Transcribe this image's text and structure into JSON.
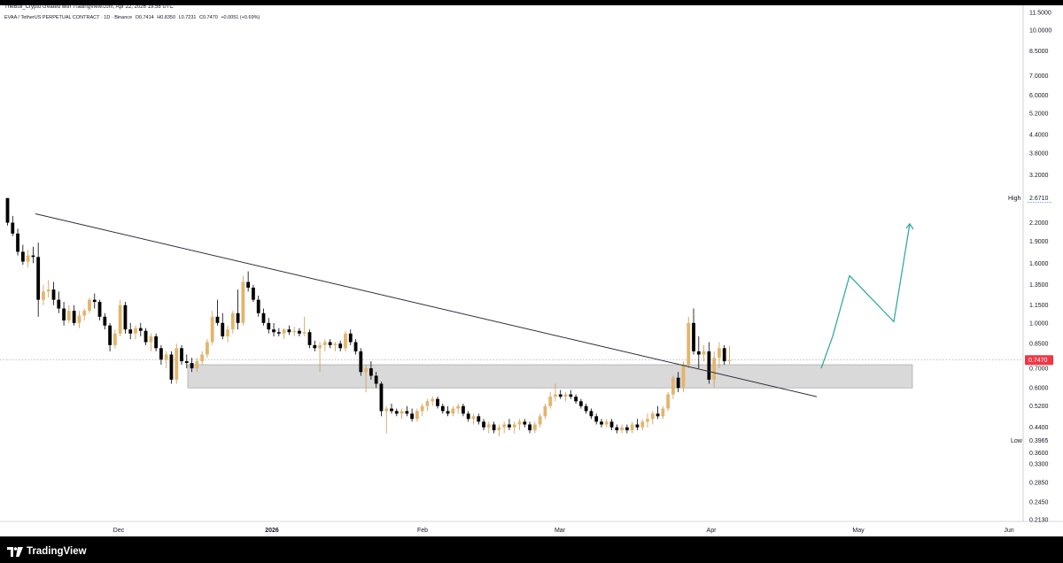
{
  "header": {
    "author_line": "TheBull_Crypto created with TradingView.com, Apr 22, 2026 19:58 UTC",
    "symbol": "EVAA / TetherUS PERPETUAL CONTRACT · 1D · Binance",
    "open": "O0.7414",
    "high": "H0.8350",
    "low": "L0.7231",
    "close": "C0.7470",
    "change": "+0.0051 (+0.69%)"
  },
  "footer": {
    "brand": "TradingView"
  },
  "colors": {
    "bull": "#e3b56b",
    "bear": "#000000",
    "zone": "#d9d9d9",
    "trendline": "#2a2e39",
    "projection": "#26a69a",
    "price_marker": "#f23645"
  },
  "chart_data": {
    "type": "candlestick",
    "title": "",
    "scale": "log",
    "y_ticks": [
      "11.5000",
      "10.0000",
      "8.5000",
      "7.0000",
      "6.0000",
      "5.2000",
      "4.4000",
      "3.8000",
      "3.2000",
      "2.6710",
      "2.2000",
      "1.9000",
      "1.6000",
      "1.3500",
      "1.1500",
      "1.0000",
      "0.8500",
      "0.7470",
      "0.7000",
      "0.6000",
      "0.5200",
      "0.4400",
      "0.3965",
      "0.3600",
      "0.3300",
      "0.2850",
      "0.2450",
      "0.2130"
    ],
    "x_ticks": [
      "Dec",
      "2026",
      "Feb",
      "Mar",
      "Apr",
      "May",
      "Jun"
    ],
    "markers": {
      "high": {
        "label": "High",
        "value": "2.6710"
      },
      "low": {
        "label": "Low",
        "value": "0.3965"
      },
      "last": {
        "value": "0.7470"
      }
    },
    "support_zone": {
      "low": 0.6,
      "high": 0.72
    },
    "trendline": [
      {
        "date": "2025-11-08",
        "price": 2.36
      },
      {
        "date": "2026-04-22",
        "price": 0.56
      }
    ],
    "projection_path": [
      {
        "date": "2026-04-23",
        "price": 0.7
      },
      {
        "date": "2026-04-28",
        "price": 0.9
      },
      {
        "date": "2026-05-02",
        "price": 1.45
      },
      {
        "date": "2026-05-13",
        "price": 1.01
      },
      {
        "date": "2026-05-17",
        "price": 2.18
      }
    ],
    "candles": [
      {
        "o": 2.67,
        "h": 2.67,
        "l": 2.15,
        "c": 2.2
      },
      {
        "o": 2.2,
        "h": 2.32,
        "l": 1.98,
        "c": 2.02
      },
      {
        "o": 2.02,
        "h": 2.1,
        "l": 1.7,
        "c": 1.75
      },
      {
        "o": 1.75,
        "h": 1.85,
        "l": 1.58,
        "c": 1.62
      },
      {
        "o": 1.62,
        "h": 1.78,
        "l": 1.55,
        "c": 1.7
      },
      {
        "o": 1.7,
        "h": 1.82,
        "l": 1.6,
        "c": 1.68
      },
      {
        "o": 1.68,
        "h": 1.88,
        "l": 1.05,
        "c": 1.2
      },
      {
        "o": 1.2,
        "h": 1.35,
        "l": 1.15,
        "c": 1.28
      },
      {
        "o": 1.28,
        "h": 1.4,
        "l": 1.22,
        "c": 1.3
      },
      {
        "o": 1.3,
        "h": 1.38,
        "l": 1.15,
        "c": 1.2
      },
      {
        "o": 1.2,
        "h": 1.28,
        "l": 1.08,
        "c": 1.12
      },
      {
        "o": 1.12,
        "h": 1.18,
        "l": 0.98,
        "c": 1.02
      },
      {
        "o": 1.02,
        "h": 1.15,
        "l": 1.0,
        "c": 1.1
      },
      {
        "o": 1.1,
        "h": 1.15,
        "l": 0.98,
        "c": 1.0
      },
      {
        "o": 1.0,
        "h": 1.1,
        "l": 0.96,
        "c": 1.06
      },
      {
        "o": 1.06,
        "h": 1.12,
        "l": 1.02,
        "c": 1.1
      },
      {
        "o": 1.1,
        "h": 1.22,
        "l": 1.08,
        "c": 1.2
      },
      {
        "o": 1.2,
        "h": 1.26,
        "l": 1.12,
        "c": 1.18
      },
      {
        "o": 1.18,
        "h": 1.2,
        "l": 1.02,
        "c": 1.05
      },
      {
        "o": 1.05,
        "h": 1.08,
        "l": 0.95,
        "c": 0.98
      },
      {
        "o": 0.98,
        "h": 1.0,
        "l": 0.8,
        "c": 0.84
      },
      {
        "o": 0.84,
        "h": 0.95,
        "l": 0.82,
        "c": 0.92
      },
      {
        "o": 0.92,
        "h": 1.2,
        "l": 0.9,
        "c": 1.15
      },
      {
        "o": 1.15,
        "h": 1.18,
        "l": 0.92,
        "c": 0.95
      },
      {
        "o": 0.95,
        "h": 1.0,
        "l": 0.88,
        "c": 0.92
      },
      {
        "o": 0.92,
        "h": 0.98,
        "l": 0.88,
        "c": 0.96
      },
      {
        "o": 0.96,
        "h": 1.0,
        "l": 0.9,
        "c": 0.94
      },
      {
        "o": 0.94,
        "h": 0.96,
        "l": 0.84,
        "c": 0.86
      },
      {
        "o": 0.86,
        "h": 0.92,
        "l": 0.8,
        "c": 0.9
      },
      {
        "o": 0.9,
        "h": 0.92,
        "l": 0.8,
        "c": 0.82
      },
      {
        "o": 0.82,
        "h": 0.84,
        "l": 0.72,
        "c": 0.75
      },
      {
        "o": 0.75,
        "h": 0.8,
        "l": 0.7,
        "c": 0.78
      },
      {
        "o": 0.78,
        "h": 0.8,
        "l": 0.62,
        "c": 0.64
      },
      {
        "o": 0.64,
        "h": 0.85,
        "l": 0.62,
        "c": 0.82
      },
      {
        "o": 0.82,
        "h": 0.84,
        "l": 0.72,
        "c": 0.74
      },
      {
        "o": 0.74,
        "h": 0.78,
        "l": 0.7,
        "c": 0.73
      },
      {
        "o": 0.73,
        "h": 0.76,
        "l": 0.68,
        "c": 0.7
      },
      {
        "o": 0.7,
        "h": 0.76,
        "l": 0.68,
        "c": 0.74
      },
      {
        "o": 0.74,
        "h": 0.8,
        "l": 0.72,
        "c": 0.78
      },
      {
        "o": 0.78,
        "h": 0.88,
        "l": 0.76,
        "c": 0.86
      },
      {
        "o": 0.86,
        "h": 1.1,
        "l": 0.84,
        "c": 1.05
      },
      {
        "o": 1.05,
        "h": 1.2,
        "l": 0.98,
        "c": 1.0
      },
      {
        "o": 1.0,
        "h": 1.08,
        "l": 0.88,
        "c": 0.9
      },
      {
        "o": 0.9,
        "h": 0.98,
        "l": 0.86,
        "c": 0.95
      },
      {
        "o": 0.95,
        "h": 1.1,
        "l": 0.92,
        "c": 1.08
      },
      {
        "o": 1.08,
        "h": 1.3,
        "l": 0.95,
        "c": 1.0
      },
      {
        "o": 1.0,
        "h": 1.45,
        "l": 0.98,
        "c": 1.38
      },
      {
        "o": 1.38,
        "h": 1.5,
        "l": 1.28,
        "c": 1.32
      },
      {
        "o": 1.32,
        "h": 1.35,
        "l": 1.18,
        "c": 1.2
      },
      {
        "o": 1.2,
        "h": 1.24,
        "l": 1.05,
        "c": 1.08
      },
      {
        "o": 1.08,
        "h": 1.12,
        "l": 0.98,
        "c": 1.0
      },
      {
        "o": 1.0,
        "h": 1.04,
        "l": 0.92,
        "c": 0.95
      },
      {
        "o": 0.95,
        "h": 1.0,
        "l": 0.9,
        "c": 0.93
      },
      {
        "o": 0.93,
        "h": 0.96,
        "l": 0.9,
        "c": 0.92
      },
      {
        "o": 0.92,
        "h": 0.96,
        "l": 0.88,
        "c": 0.95
      },
      {
        "o": 0.95,
        "h": 0.98,
        "l": 0.91,
        "c": 0.93
      },
      {
        "o": 0.93,
        "h": 0.97,
        "l": 0.9,
        "c": 0.94
      },
      {
        "o": 0.94,
        "h": 0.96,
        "l": 0.9,
        "c": 0.92
      },
      {
        "o": 0.92,
        "h": 1.05,
        "l": 0.9,
        "c": 0.93
      },
      {
        "o": 0.93,
        "h": 0.95,
        "l": 0.82,
        "c": 0.84
      },
      {
        "o": 0.84,
        "h": 0.87,
        "l": 0.8,
        "c": 0.82
      },
      {
        "o": 0.82,
        "h": 0.86,
        "l": 0.68,
        "c": 0.84
      },
      {
        "o": 0.84,
        "h": 0.88,
        "l": 0.8,
        "c": 0.86
      },
      {
        "o": 0.86,
        "h": 0.88,
        "l": 0.82,
        "c": 0.84
      },
      {
        "o": 0.84,
        "h": 0.86,
        "l": 0.8,
        "c": 0.85
      },
      {
        "o": 0.85,
        "h": 0.87,
        "l": 0.8,
        "c": 0.82
      },
      {
        "o": 0.82,
        "h": 0.94,
        "l": 0.8,
        "c": 0.92
      },
      {
        "o": 0.92,
        "h": 0.95,
        "l": 0.84,
        "c": 0.86
      },
      {
        "o": 0.86,
        "h": 0.88,
        "l": 0.78,
        "c": 0.8
      },
      {
        "o": 0.8,
        "h": 0.82,
        "l": 0.66,
        "c": 0.68
      },
      {
        "o": 0.68,
        "h": 0.72,
        "l": 0.58,
        "c": 0.7
      },
      {
        "o": 0.7,
        "h": 0.74,
        "l": 0.64,
        "c": 0.66
      },
      {
        "o": 0.66,
        "h": 0.68,
        "l": 0.6,
        "c": 0.62
      },
      {
        "o": 0.62,
        "h": 0.63,
        "l": 0.48,
        "c": 0.5
      },
      {
        "o": 0.5,
        "h": 0.52,
        "l": 0.42,
        "c": 0.51
      },
      {
        "o": 0.51,
        "h": 0.53,
        "l": 0.49,
        "c": 0.5
      },
      {
        "o": 0.5,
        "h": 0.51,
        "l": 0.48,
        "c": 0.49
      },
      {
        "o": 0.49,
        "h": 0.51,
        "l": 0.47,
        "c": 0.5
      },
      {
        "o": 0.5,
        "h": 0.52,
        "l": 0.48,
        "c": 0.49
      },
      {
        "o": 0.49,
        "h": 0.51,
        "l": 0.46,
        "c": 0.47
      },
      {
        "o": 0.47,
        "h": 0.51,
        "l": 0.46,
        "c": 0.5
      },
      {
        "o": 0.5,
        "h": 0.53,
        "l": 0.48,
        "c": 0.52
      },
      {
        "o": 0.52,
        "h": 0.55,
        "l": 0.5,
        "c": 0.54
      },
      {
        "o": 0.54,
        "h": 0.56,
        "l": 0.52,
        "c": 0.55
      },
      {
        "o": 0.55,
        "h": 0.56,
        "l": 0.51,
        "c": 0.52
      },
      {
        "o": 0.52,
        "h": 0.53,
        "l": 0.49,
        "c": 0.5
      },
      {
        "o": 0.5,
        "h": 0.52,
        "l": 0.48,
        "c": 0.49
      },
      {
        "o": 0.49,
        "h": 0.52,
        "l": 0.48,
        "c": 0.51
      },
      {
        "o": 0.51,
        "h": 0.53,
        "l": 0.49,
        "c": 0.52
      },
      {
        "o": 0.52,
        "h": 0.53,
        "l": 0.48,
        "c": 0.49
      },
      {
        "o": 0.49,
        "h": 0.5,
        "l": 0.46,
        "c": 0.47
      },
      {
        "o": 0.47,
        "h": 0.49,
        "l": 0.45,
        "c": 0.48
      },
      {
        "o": 0.48,
        "h": 0.49,
        "l": 0.45,
        "c": 0.46
      },
      {
        "o": 0.46,
        "h": 0.47,
        "l": 0.43,
        "c": 0.44
      },
      {
        "o": 0.44,
        "h": 0.46,
        "l": 0.42,
        "c": 0.45
      },
      {
        "o": 0.45,
        "h": 0.46,
        "l": 0.42,
        "c": 0.43
      },
      {
        "o": 0.43,
        "h": 0.45,
        "l": 0.41,
        "c": 0.44
      },
      {
        "o": 0.44,
        "h": 0.46,
        "l": 0.42,
        "c": 0.45
      },
      {
        "o": 0.45,
        "h": 0.47,
        "l": 0.43,
        "c": 0.44
      },
      {
        "o": 0.44,
        "h": 0.46,
        "l": 0.42,
        "c": 0.45
      },
      {
        "o": 0.45,
        "h": 0.47,
        "l": 0.43,
        "c": 0.46
      },
      {
        "o": 0.46,
        "h": 0.47,
        "l": 0.44,
        "c": 0.45
      },
      {
        "o": 0.45,
        "h": 0.46,
        "l": 0.42,
        "c": 0.43
      },
      {
        "o": 0.43,
        "h": 0.46,
        "l": 0.42,
        "c": 0.45
      },
      {
        "o": 0.45,
        "h": 0.49,
        "l": 0.44,
        "c": 0.48
      },
      {
        "o": 0.48,
        "h": 0.53,
        "l": 0.47,
        "c": 0.52
      },
      {
        "o": 0.52,
        "h": 0.58,
        "l": 0.51,
        "c": 0.56
      },
      {
        "o": 0.56,
        "h": 0.62,
        "l": 0.54,
        "c": 0.57
      },
      {
        "o": 0.57,
        "h": 0.59,
        "l": 0.55,
        "c": 0.56
      },
      {
        "o": 0.56,
        "h": 0.58,
        "l": 0.54,
        "c": 0.57
      },
      {
        "o": 0.57,
        "h": 0.59,
        "l": 0.55,
        "c": 0.56
      },
      {
        "o": 0.56,
        "h": 0.57,
        "l": 0.53,
        "c": 0.54
      },
      {
        "o": 0.54,
        "h": 0.55,
        "l": 0.51,
        "c": 0.52
      },
      {
        "o": 0.52,
        "h": 0.53,
        "l": 0.49,
        "c": 0.5
      },
      {
        "o": 0.5,
        "h": 0.51,
        "l": 0.47,
        "c": 0.48
      },
      {
        "o": 0.48,
        "h": 0.49,
        "l": 0.45,
        "c": 0.46
      },
      {
        "o": 0.46,
        "h": 0.47,
        "l": 0.44,
        "c": 0.45
      },
      {
        "o": 0.45,
        "h": 0.47,
        "l": 0.44,
        "c": 0.46
      },
      {
        "o": 0.46,
        "h": 0.47,
        "l": 0.43,
        "c": 0.44
      },
      {
        "o": 0.44,
        "h": 0.45,
        "l": 0.42,
        "c": 0.43
      },
      {
        "o": 0.43,
        "h": 0.45,
        "l": 0.42,
        "c": 0.44
      },
      {
        "o": 0.44,
        "h": 0.45,
        "l": 0.42,
        "c": 0.43
      },
      {
        "o": 0.43,
        "h": 0.46,
        "l": 0.42,
        "c": 0.45
      },
      {
        "o": 0.45,
        "h": 0.47,
        "l": 0.43,
        "c": 0.44
      },
      {
        "o": 0.44,
        "h": 0.47,
        "l": 0.43,
        "c": 0.46
      },
      {
        "o": 0.46,
        "h": 0.49,
        "l": 0.44,
        "c": 0.47
      },
      {
        "o": 0.47,
        "h": 0.5,
        "l": 0.45,
        "c": 0.49
      },
      {
        "o": 0.49,
        "h": 0.52,
        "l": 0.47,
        "c": 0.48
      },
      {
        "o": 0.48,
        "h": 0.52,
        "l": 0.47,
        "c": 0.51
      },
      {
        "o": 0.51,
        "h": 0.58,
        "l": 0.5,
        "c": 0.57
      },
      {
        "o": 0.57,
        "h": 0.66,
        "l": 0.55,
        "c": 0.65
      },
      {
        "o": 0.65,
        "h": 0.68,
        "l": 0.58,
        "c": 0.6
      },
      {
        "o": 0.6,
        "h": 0.74,
        "l": 0.58,
        "c": 0.72
      },
      {
        "o": 0.72,
        "h": 1.05,
        "l": 0.7,
        "c": 1.0
      },
      {
        "o": 1.0,
        "h": 1.12,
        "l": 0.78,
        "c": 0.8
      },
      {
        "o": 0.8,
        "h": 0.9,
        "l": 0.7,
        "c": 0.78
      },
      {
        "o": 0.78,
        "h": 0.84,
        "l": 0.74,
        "c": 0.8
      },
      {
        "o": 0.8,
        "h": 0.86,
        "l": 0.62,
        "c": 0.64
      },
      {
        "o": 0.64,
        "h": 0.8,
        "l": 0.6,
        "c": 0.76
      },
      {
        "o": 0.76,
        "h": 0.86,
        "l": 0.7,
        "c": 0.82
      },
      {
        "o": 0.82,
        "h": 0.84,
        "l": 0.72,
        "c": 0.74
      },
      {
        "o": 0.7414,
        "h": 0.835,
        "l": 0.7231,
        "c": 0.747
      }
    ]
  }
}
